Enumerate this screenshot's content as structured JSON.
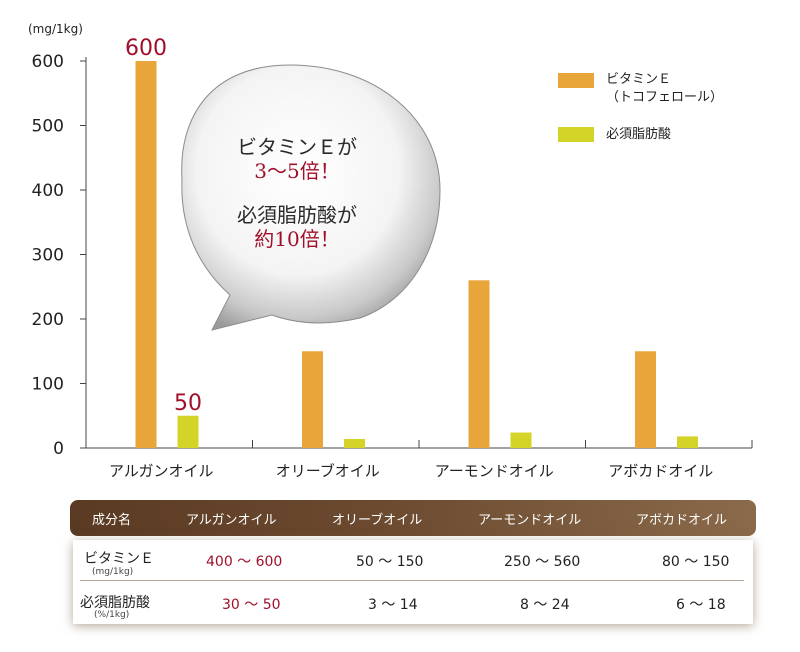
{
  "chart_data": {
    "type": "bar",
    "unit_label": "(mg/1kg)",
    "categories": [
      "アルガンオイル",
      "オリーブオイル",
      "アーモンドオイル",
      "アボカドオイル"
    ],
    "series": [
      {
        "name": "ビタミンＥ（トコフェロール）",
        "legend_line1": "ビタミンＥ",
        "legend_line2": "（トコフェロール）",
        "color": "#e8a63a",
        "values": [
          600,
          150,
          260,
          150
        ]
      },
      {
        "name": "必須脂肪酸",
        "legend_line1": "必須脂肪酸",
        "color": "#d4d428",
        "values": [
          50,
          14,
          24,
          18
        ]
      }
    ],
    "yticks": [
      0,
      100,
      200,
      300,
      400,
      500,
      600
    ],
    "ylim": [
      0,
      600
    ],
    "value_labels": [
      {
        "series": 0,
        "category": 0,
        "text": "600",
        "color": "#a0102a"
      },
      {
        "series": 1,
        "category": 0,
        "text": "50",
        "color": "#a0102a"
      }
    ],
    "grid": false,
    "legend_position": "top-right"
  },
  "bubble": {
    "line1": "ビタミンＥが",
    "line2": "3～5倍！",
    "line3": "必須脂肪酸が",
    "line4": "約10倍！"
  },
  "table": {
    "header": [
      "成分名",
      "アルガンオイル",
      "オリーブオイル",
      "アーモンドオイル",
      "アボカドオイル"
    ],
    "rows": [
      {
        "label": "ビタミンＥ",
        "unit": "(mg/1kg)",
        "values": [
          "400 ～ 600",
          "50 ～ 150",
          "250 ～ 560",
          "80 ～ 150"
        ]
      },
      {
        "label": "必須脂肪酸",
        "unit": "(%/1kg)",
        "values": [
          "30 ～ 50",
          "3 ～ 14",
          "8 ～ 24",
          "6 ～ 18"
        ]
      }
    ]
  },
  "colors": {
    "accent_red": "#a0102a",
    "vitamin_e": "#e8a63a",
    "fatty_acid": "#d4d428",
    "table_header": "#5a3a22"
  }
}
